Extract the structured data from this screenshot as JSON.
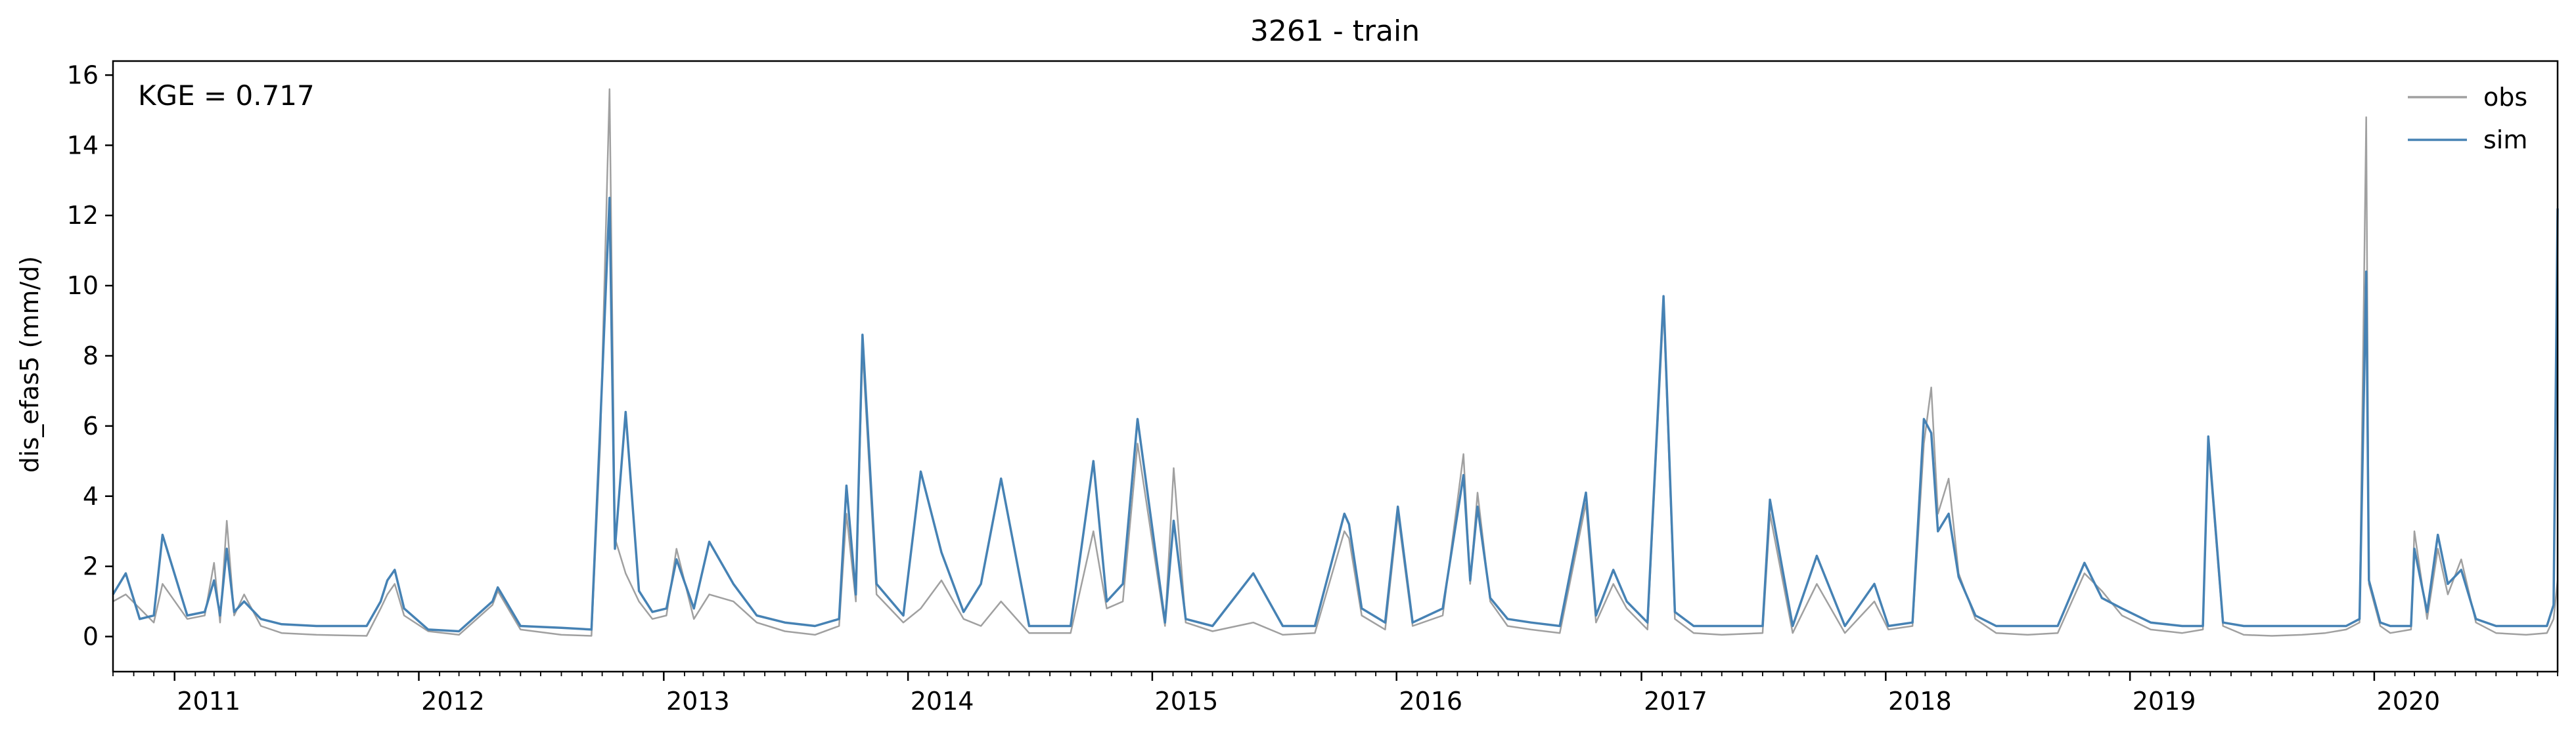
{
  "chart_data": {
    "type": "line",
    "title": "3261 - train",
    "xlabel": "",
    "ylabel": "dis_efas5 (mm/d)",
    "annotation": "KGE = 0.717",
    "xlim": [
      "2010-10-01",
      "2020-10-01"
    ],
    "ylim": [
      -1,
      16.4
    ],
    "yticks": [
      0,
      2,
      4,
      6,
      8,
      10,
      12,
      14,
      16
    ],
    "xtick_labels": [
      "2011",
      "2012",
      "2013",
      "2014",
      "2015",
      "2016",
      "2017",
      "2018",
      "2019",
      "2020"
    ],
    "xtick_dates": [
      "2011-01-01",
      "2012-01-01",
      "2013-01-01",
      "2014-01-01",
      "2015-01-01",
      "2016-01-01",
      "2017-01-01",
      "2018-01-01",
      "2019-01-01",
      "2020-01-01"
    ],
    "legend": {
      "position": "upper right",
      "entries": [
        "obs",
        "sim"
      ]
    },
    "grid": false,
    "colors": {
      "obs": "#a0a0a0",
      "sim": "#4682b4"
    },
    "series": [
      {
        "name": "obs",
        "x": [
          "2010-10-01",
          "2010-10-20",
          "2010-11-10",
          "2010-12-01",
          "2010-12-14",
          "2011-01-20",
          "2011-02-15",
          "2011-03-01",
          "2011-03-10",
          "2011-03-20",
          "2011-03-31",
          "2011-04-15",
          "2011-05-10",
          "2011-06-10",
          "2011-08-01",
          "2011-10-15",
          "2011-11-05",
          "2011-11-15",
          "2011-11-26",
          "2011-12-10",
          "2012-01-15",
          "2012-03-01",
          "2012-04-20",
          "2012-04-28",
          "2012-06-01",
          "2012-08-01",
          "2012-09-15",
          "2012-09-28",
          "2012-10-12",
          "2012-10-20",
          "2012-11-05",
          "2012-11-25",
          "2012-12-15",
          "2013-01-05",
          "2013-01-20",
          "2013-02-15",
          "2013-03-10",
          "2013-04-15",
          "2013-05-20",
          "2013-07-01",
          "2013-08-15",
          "2013-09-20",
          "2013-10-01",
          "2013-10-15",
          "2013-10-25",
          "2013-11-15",
          "2013-12-25",
          "2014-01-20",
          "2014-02-20",
          "2014-03-25",
          "2014-04-20",
          "2014-05-20",
          "2014-07-01",
          "2014-09-01",
          "2014-10-05",
          "2014-10-25",
          "2014-11-18",
          "2014-12-10",
          "2015-01-20",
          "2015-02-02",
          "2015-02-20",
          "2015-04-01",
          "2015-06-01",
          "2015-07-15",
          "2015-09-01",
          "2015-10-15",
          "2015-10-22",
          "2015-11-10",
          "2015-12-15",
          "2016-01-03",
          "2016-01-25",
          "2016-03-10",
          "2016-04-10",
          "2016-04-20",
          "2016-05-01",
          "2016-05-20",
          "2016-06-15",
          "2016-07-20",
          "2016-09-01",
          "2016-10-10",
          "2016-10-25",
          "2016-11-20",
          "2016-12-10",
          "2017-01-10",
          "2017-02-03",
          "2017-02-20",
          "2017-03-20",
          "2017-05-01",
          "2017-07-01",
          "2017-07-12",
          "2017-08-15",
          "2017-09-20",
          "2017-11-01",
          "2017-12-15",
          "2018-01-05",
          "2018-02-10",
          "2018-02-27",
          "2018-03-10",
          "2018-03-20",
          "2018-04-05",
          "2018-04-20",
          "2018-05-15",
          "2018-06-15",
          "2018-08-01",
          "2018-09-15",
          "2018-10-25",
          "2018-11-20",
          "2018-12-20",
          "2019-02-01",
          "2019-03-20",
          "2019-04-20",
          "2019-04-28",
          "2019-05-20",
          "2019-06-20",
          "2019-08-01",
          "2019-09-15",
          "2019-10-20",
          "2019-11-20",
          "2019-12-10",
          "2019-12-20",
          "2019-12-24",
          "2020-01-10",
          "2020-01-25",
          "2020-02-25",
          "2020-03-01",
          "2020-03-20",
          "2020-04-05",
          "2020-04-20",
          "2020-05-10",
          "2020-06-01",
          "2020-07-01",
          "2020-08-15",
          "2020-09-15",
          "2020-09-25",
          "2020-10-01"
        ],
        "y": [
          1.0,
          1.2,
          0.8,
          0.4,
          1.5,
          0.5,
          0.6,
          2.1,
          0.4,
          3.3,
          0.6,
          1.2,
          0.3,
          0.1,
          0.05,
          0.02,
          0.8,
          1.2,
          1.5,
          0.6,
          0.15,
          0.05,
          0.9,
          1.3,
          0.2,
          0.05,
          0.02,
          5.5,
          15.6,
          2.8,
          1.8,
          1.0,
          0.5,
          0.6,
          2.5,
          0.5,
          1.2,
          1.0,
          0.4,
          0.15,
          0.05,
          0.3,
          3.5,
          1.0,
          8.2,
          1.2,
          0.4,
          0.8,
          1.6,
          0.5,
          0.3,
          1.0,
          0.1,
          0.1,
          3.0,
          0.8,
          1.0,
          5.5,
          0.3,
          4.8,
          0.4,
          0.15,
          0.4,
          0.05,
          0.1,
          3.0,
          2.8,
          0.6,
          0.2,
          3.5,
          0.3,
          0.6,
          5.2,
          1.5,
          4.1,
          1.0,
          0.3,
          0.2,
          0.1,
          3.8,
          0.4,
          1.5,
          0.8,
          0.2,
          9.4,
          0.5,
          0.1,
          0.05,
          0.1,
          3.5,
          0.1,
          1.5,
          0.1,
          1.0,
          0.2,
          0.3,
          5.5,
          7.1,
          3.5,
          4.5,
          1.8,
          0.5,
          0.1,
          0.05,
          0.1,
          1.8,
          1.3,
          0.6,
          0.2,
          0.1,
          0.2,
          5.5,
          0.3,
          0.05,
          0.02,
          0.05,
          0.1,
          0.2,
          0.4,
          14.8,
          1.5,
          0.3,
          0.1,
          0.2,
          3.0,
          0.5,
          2.5,
          1.2,
          2.2,
          0.4,
          0.1,
          0.05,
          0.1,
          0.5,
          1.6
        ]
      },
      {
        "name": "sim",
        "x": [
          "2010-10-01",
          "2010-10-20",
          "2010-11-10",
          "2010-12-01",
          "2010-12-14",
          "2011-01-20",
          "2011-02-15",
          "2011-03-01",
          "2011-03-10",
          "2011-03-20",
          "2011-03-31",
          "2011-04-15",
          "2011-05-10",
          "2011-06-10",
          "2011-08-01",
          "2011-10-15",
          "2011-11-05",
          "2011-11-15",
          "2011-11-26",
          "2011-12-10",
          "2012-01-15",
          "2012-03-01",
          "2012-04-20",
          "2012-04-28",
          "2012-06-01",
          "2012-08-01",
          "2012-09-15",
          "2012-09-28",
          "2012-10-12",
          "2012-10-20",
          "2012-11-05",
          "2012-11-25",
          "2012-12-15",
          "2013-01-05",
          "2013-01-20",
          "2013-02-15",
          "2013-03-10",
          "2013-04-15",
          "2013-05-20",
          "2013-07-01",
          "2013-08-15",
          "2013-09-20",
          "2013-10-01",
          "2013-10-15",
          "2013-10-25",
          "2013-11-15",
          "2013-12-25",
          "2014-01-20",
          "2014-02-20",
          "2014-03-25",
          "2014-04-20",
          "2014-05-20",
          "2014-07-01",
          "2014-09-01",
          "2014-10-05",
          "2014-10-25",
          "2014-11-18",
          "2014-12-10",
          "2015-01-20",
          "2015-02-02",
          "2015-02-20",
          "2015-04-01",
          "2015-06-01",
          "2015-07-15",
          "2015-09-01",
          "2015-10-15",
          "2015-10-22",
          "2015-11-10",
          "2015-12-15",
          "2016-01-03",
          "2016-01-25",
          "2016-03-10",
          "2016-04-10",
          "2016-04-20",
          "2016-05-01",
          "2016-05-20",
          "2016-06-15",
          "2016-07-20",
          "2016-09-01",
          "2016-10-10",
          "2016-10-25",
          "2016-11-20",
          "2016-12-10",
          "2017-01-10",
          "2017-02-03",
          "2017-02-20",
          "2017-03-20",
          "2017-05-01",
          "2017-07-01",
          "2017-07-12",
          "2017-08-15",
          "2017-09-20",
          "2017-11-01",
          "2017-12-15",
          "2018-01-05",
          "2018-02-10",
          "2018-02-27",
          "2018-03-10",
          "2018-03-20",
          "2018-04-05",
          "2018-04-20",
          "2018-05-15",
          "2018-06-15",
          "2018-08-01",
          "2018-09-15",
          "2018-10-25",
          "2018-11-20",
          "2018-12-20",
          "2019-02-01",
          "2019-03-20",
          "2019-04-20",
          "2019-04-28",
          "2019-05-20",
          "2019-06-20",
          "2019-08-01",
          "2019-09-15",
          "2019-10-20",
          "2019-11-20",
          "2019-12-10",
          "2019-12-20",
          "2019-12-24",
          "2020-01-10",
          "2020-01-25",
          "2020-02-25",
          "2020-03-01",
          "2020-03-20",
          "2020-04-05",
          "2020-04-20",
          "2020-05-10",
          "2020-06-01",
          "2020-07-01",
          "2020-08-15",
          "2020-09-15",
          "2020-09-25",
          "2020-10-01"
        ],
        "y": [
          1.2,
          1.8,
          0.5,
          0.6,
          2.9,
          0.6,
          0.7,
          1.6,
          0.6,
          2.5,
          0.7,
          1.0,
          0.5,
          0.35,
          0.3,
          0.3,
          1.0,
          1.6,
          1.9,
          0.8,
          0.2,
          0.15,
          1.0,
          1.4,
          0.3,
          0.25,
          0.2,
          6.0,
          12.5,
          2.5,
          6.4,
          1.3,
          0.7,
          0.8,
          2.2,
          0.8,
          2.7,
          1.5,
          0.6,
          0.4,
          0.3,
          0.5,
          4.3,
          1.2,
          8.6,
          1.5,
          0.6,
          4.7,
          2.4,
          0.7,
          1.5,
          4.5,
          0.3,
          0.3,
          5.0,
          1.0,
          1.5,
          6.2,
          0.4,
          3.3,
          0.5,
          0.3,
          1.8,
          0.3,
          0.3,
          3.5,
          3.2,
          0.8,
          0.4,
          3.7,
          0.4,
          0.8,
          4.6,
          1.6,
          3.7,
          1.1,
          0.5,
          0.4,
          0.3,
          4.1,
          0.6,
          1.9,
          1.0,
          0.4,
          9.7,
          0.7,
          0.3,
          0.3,
          0.3,
          3.9,
          0.3,
          2.3,
          0.3,
          1.5,
          0.3,
          0.4,
          6.2,
          5.8,
          3.0,
          3.5,
          1.7,
          0.6,
          0.3,
          0.3,
          0.3,
          2.1,
          1.1,
          0.8,
          0.4,
          0.3,
          0.3,
          5.7,
          0.4,
          0.3,
          0.3,
          0.3,
          0.3,
          0.3,
          0.5,
          10.4,
          1.6,
          0.4,
          0.3,
          0.3,
          2.5,
          0.7,
          2.9,
          1.5,
          1.9,
          0.5,
          0.3,
          0.3,
          0.3,
          0.9,
          12.2
        ]
      }
    ]
  }
}
